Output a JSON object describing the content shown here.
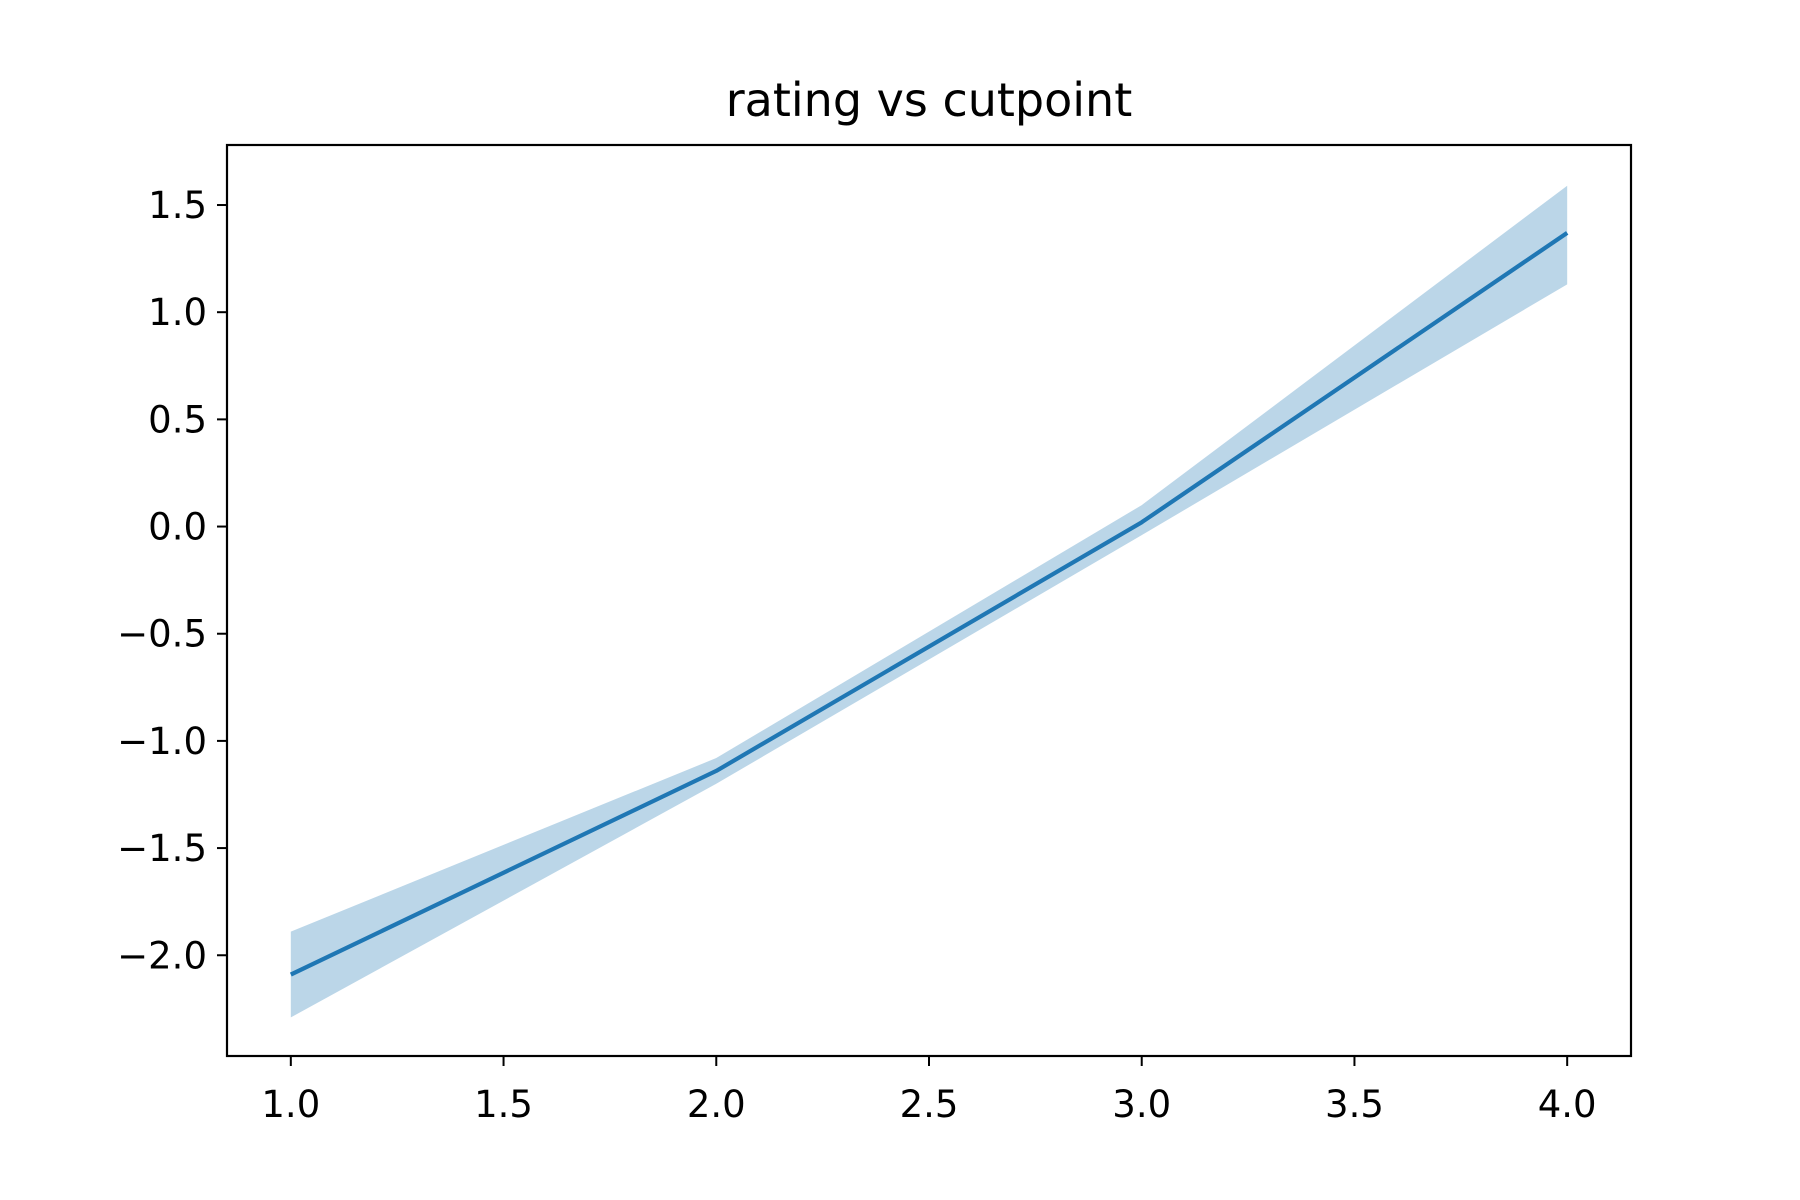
{
  "chart_data": {
    "type": "line",
    "title": "rating vs cutpoint",
    "xlabel": "",
    "ylabel": "",
    "x": [
      1.0,
      2.0,
      3.0,
      4.0
    ],
    "series": [
      {
        "values": [
          -2.09,
          -1.14,
          0.02,
          1.37
        ],
        "lower": [
          -2.29,
          -1.2,
          -0.04,
          1.13
        ],
        "upper": [
          -1.89,
          -1.08,
          0.1,
          1.59
        ]
      }
    ],
    "xlim": [
      0.85,
      4.15
    ],
    "ylim": [
      -2.47,
      1.78
    ],
    "x_ticks": [
      {
        "value": 1.0,
        "label": "1.0"
      },
      {
        "value": 1.5,
        "label": "1.5"
      },
      {
        "value": 2.0,
        "label": "2.0"
      },
      {
        "value": 2.5,
        "label": "2.5"
      },
      {
        "value": 3.0,
        "label": "3.0"
      },
      {
        "value": 3.5,
        "label": "3.5"
      },
      {
        "value": 4.0,
        "label": "4.0"
      }
    ],
    "y_ticks": [
      {
        "value": -2.0,
        "label": "−2.0"
      },
      {
        "value": -1.5,
        "label": "−1.5"
      },
      {
        "value": -1.0,
        "label": "−1.0"
      },
      {
        "value": -0.5,
        "label": "−0.5"
      },
      {
        "value": 0.0,
        "label": "0.0"
      },
      {
        "value": 0.5,
        "label": "0.5"
      },
      {
        "value": 1.0,
        "label": "1.0"
      },
      {
        "value": 1.5,
        "label": "1.5"
      }
    ],
    "grid": false,
    "legend": "none",
    "colors": {
      "line": "#1f77b4",
      "band": "#1f77b4",
      "axes": "#000000",
      "background": "#ffffff"
    },
    "band_opacity": 0.3
  }
}
